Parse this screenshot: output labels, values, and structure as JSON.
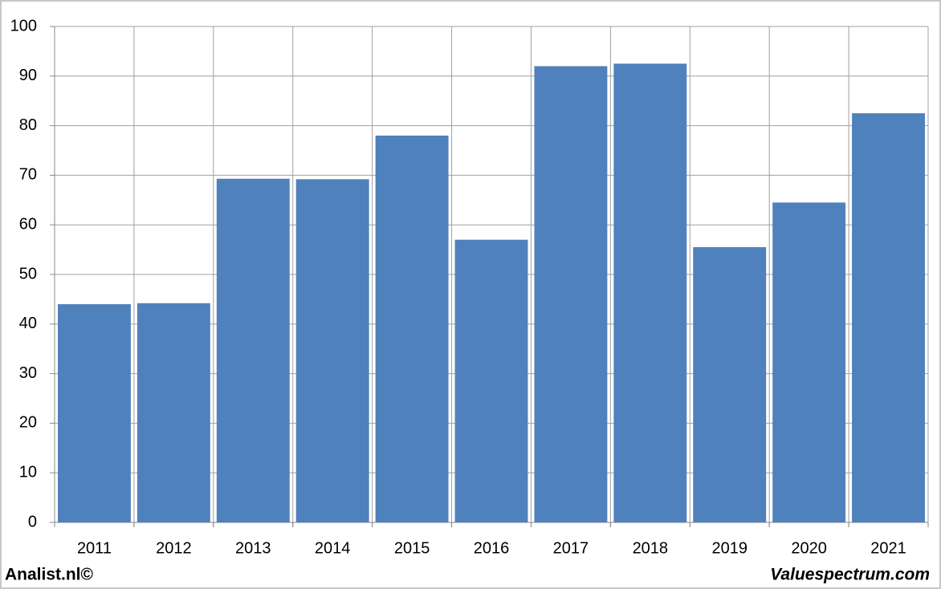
{
  "chart_data": {
    "type": "bar",
    "categories": [
      "2011",
      "2012",
      "2013",
      "2014",
      "2015",
      "2016",
      "2017",
      "2018",
      "2019",
      "2020",
      "2021"
    ],
    "values": [
      44,
      44.2,
      69.3,
      69.2,
      78,
      57,
      92,
      92.5,
      55.5,
      64.5,
      82.5
    ],
    "color": "#4f81bd",
    "ylim": [
      0,
      100
    ],
    "yticks": [
      0,
      10,
      20,
      30,
      40,
      50,
      60,
      70,
      80,
      90,
      100
    ],
    "grid": true
  },
  "footer": {
    "left": "Analist.nl©",
    "right": "Valuespectrum.com"
  }
}
